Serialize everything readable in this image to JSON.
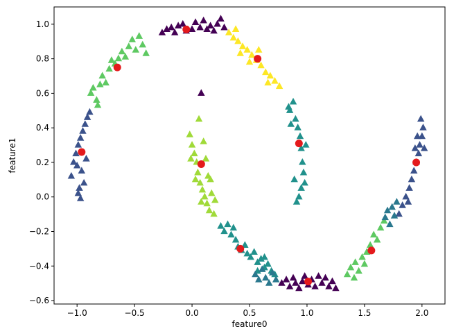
{
  "chart_data": {
    "type": "scatter",
    "title": "",
    "xlabel": "feature0",
    "ylabel": "feature1",
    "xlim": [
      -1.2,
      2.2
    ],
    "ylim": [
      -0.62,
      1.1
    ],
    "xticks": [
      -1.0,
      -0.5,
      0.0,
      0.5,
      1.0,
      1.5,
      2.0
    ],
    "xtick_labels": [
      "−1.0",
      "−0.5",
      "0.0",
      "0.5",
      "1.0",
      "1.5",
      "2.0"
    ],
    "yticks": [
      -0.6,
      -0.4,
      -0.2,
      0.0,
      0.2,
      0.4,
      0.6,
      0.8,
      1.0
    ],
    "ytick_labels": [
      "−0.6",
      "−0.4",
      "−0.2",
      "0.0",
      "0.2",
      "0.4",
      "0.6",
      "0.8",
      "1.0"
    ],
    "grid": false,
    "colors": {
      "cluster_0": "#440154",
      "cluster_1": "#21918c",
      "cluster_2": "#5ec962",
      "cluster_3": "#fde725",
      "cluster_4": "#a0da39",
      "cluster_5": "#3b528b",
      "cluster_6": "#2a788e",
      "center": "#e41a1c"
    },
    "series": [
      {
        "name": "cluster_0",
        "marker": "triangle",
        "color_key": "cluster_0",
        "points": [
          [
            -0.22,
            0.97
          ],
          [
            -0.18,
            0.98
          ],
          [
            -0.15,
            0.95
          ],
          [
            -0.12,
            0.99
          ],
          [
            -0.08,
            1.0
          ],
          [
            -0.05,
            0.96
          ],
          [
            0.0,
            0.97
          ],
          [
            0.03,
            1.01
          ],
          [
            0.07,
            0.98
          ],
          [
            0.1,
            1.02
          ],
          [
            0.13,
            0.97
          ],
          [
            0.16,
            0.99
          ],
          [
            0.19,
            0.96
          ],
          [
            0.22,
            1.0
          ],
          [
            0.25,
            1.03
          ],
          [
            0.28,
            0.98
          ],
          [
            -0.26,
            0.95
          ],
          [
            0.08,
            0.6
          ],
          [
            0.78,
            -0.5
          ],
          [
            0.82,
            -0.48
          ],
          [
            0.85,
            -0.52
          ],
          [
            0.88,
            -0.47
          ],
          [
            0.9,
            -0.5
          ],
          [
            0.93,
            -0.53
          ],
          [
            0.96,
            -0.49
          ],
          [
            0.98,
            -0.46
          ],
          [
            1.01,
            -0.51
          ],
          [
            1.04,
            -0.48
          ],
          [
            1.07,
            -0.52
          ],
          [
            1.1,
            -0.46
          ],
          [
            1.13,
            -0.5
          ],
          [
            1.16,
            -0.47
          ],
          [
            1.19,
            -0.52
          ],
          [
            1.22,
            -0.49
          ],
          [
            1.25,
            -0.53
          ]
        ]
      },
      {
        "name": "cluster_1",
        "marker": "triangle",
        "color_key": "cluster_1",
        "points": [
          [
            0.25,
            -0.17
          ],
          [
            0.28,
            -0.2
          ],
          [
            0.31,
            -0.16
          ],
          [
            0.34,
            -0.22
          ],
          [
            0.36,
            -0.18
          ],
          [
            0.38,
            -0.25
          ],
          [
            0.4,
            -0.29
          ],
          [
            0.43,
            -0.31
          ],
          [
            0.46,
            -0.28
          ],
          [
            0.48,
            -0.33
          ],
          [
            0.51,
            -0.35
          ],
          [
            0.54,
            -0.32
          ],
          [
            0.57,
            -0.38
          ],
          [
            0.6,
            -0.36
          ],
          [
            0.63,
            -0.41
          ],
          [
            0.66,
            -0.39
          ],
          [
            0.69,
            -0.43
          ],
          [
            0.72,
            -0.45
          ],
          [
            0.57,
            -0.43
          ],
          [
            0.63,
            -0.35
          ],
          [
            0.85,
            0.5
          ],
          [
            0.88,
            0.55
          ],
          [
            0.9,
            0.45
          ],
          [
            0.92,
            0.4
          ],
          [
            0.94,
            0.35
          ],
          [
            0.95,
            0.28
          ],
          [
            0.96,
            0.2
          ],
          [
            0.97,
            0.14
          ],
          [
            0.98,
            0.08
          ],
          [
            0.95,
            0.05
          ],
          [
            0.93,
            0.0
          ],
          [
            0.91,
            -0.03
          ],
          [
            0.89,
            0.1
          ],
          [
            0.99,
            0.3
          ],
          [
            0.86,
            0.42
          ],
          [
            0.84,
            0.52
          ]
        ]
      },
      {
        "name": "cluster_2",
        "marker": "triangle",
        "color_key": "cluster_2",
        "points": [
          [
            -0.88,
            0.6
          ],
          [
            -0.86,
            0.63
          ],
          [
            -0.83,
            0.56
          ],
          [
            -0.8,
            0.65
          ],
          [
            -0.78,
            0.7
          ],
          [
            -0.75,
            0.66
          ],
          [
            -0.72,
            0.74
          ],
          [
            -0.7,
            0.79
          ],
          [
            -0.67,
            0.77
          ],
          [
            -0.64,
            0.8
          ],
          [
            -0.61,
            0.84
          ],
          [
            -0.58,
            0.81
          ],
          [
            -0.55,
            0.87
          ],
          [
            -0.52,
            0.91
          ],
          [
            -0.49,
            0.85
          ],
          [
            -0.46,
            0.93
          ],
          [
            -0.43,
            0.88
          ],
          [
            -0.4,
            0.83
          ],
          [
            -0.82,
            0.53
          ],
          [
            1.35,
            -0.45
          ],
          [
            1.38,
            -0.41
          ],
          [
            1.42,
            -0.38
          ],
          [
            1.45,
            -0.43
          ],
          [
            1.48,
            -0.35
          ],
          [
            1.52,
            -0.32
          ],
          [
            1.55,
            -0.28
          ],
          [
            1.58,
            -0.22
          ],
          [
            1.61,
            -0.25
          ],
          [
            1.64,
            -0.18
          ],
          [
            1.67,
            -0.14
          ],
          [
            1.5,
            -0.39
          ],
          [
            1.41,
            -0.47
          ]
        ]
      },
      {
        "name": "cluster_3",
        "marker": "triangle",
        "color_key": "cluster_3",
        "points": [
          [
            0.32,
            0.95
          ],
          [
            0.36,
            0.92
          ],
          [
            0.4,
            0.9
          ],
          [
            0.44,
            0.87
          ],
          [
            0.48,
            0.85
          ],
          [
            0.52,
            0.82
          ],
          [
            0.56,
            0.79
          ],
          [
            0.6,
            0.76
          ],
          [
            0.64,
            0.72
          ],
          [
            0.68,
            0.7
          ],
          [
            0.72,
            0.67
          ],
          [
            0.76,
            0.64
          ],
          [
            0.42,
            0.83
          ],
          [
            0.5,
            0.78
          ],
          [
            0.66,
            0.66
          ],
          [
            0.38,
            0.97
          ],
          [
            0.58,
            0.85
          ]
        ]
      },
      {
        "name": "cluster_4",
        "marker": "triangle",
        "color_key": "cluster_4",
        "points": [
          [
            -0.02,
            0.36
          ],
          [
            0.0,
            0.3
          ],
          [
            0.02,
            0.25
          ],
          [
            0.04,
            0.2
          ],
          [
            0.05,
            0.14
          ],
          [
            0.07,
            0.08
          ],
          [
            0.09,
            0.04
          ],
          [
            0.11,
            0.0
          ],
          [
            0.13,
            -0.04
          ],
          [
            0.15,
            -0.08
          ],
          [
            0.17,
            0.02
          ],
          [
            0.19,
            -0.1
          ],
          [
            0.06,
            0.45
          ],
          [
            0.1,
            0.32
          ],
          [
            0.12,
            0.22
          ],
          [
            0.14,
            0.12
          ],
          [
            0.03,
            0.1
          ],
          [
            -0.01,
            0.22
          ],
          [
            0.08,
            -0.03
          ],
          [
            0.16,
            0.1
          ],
          [
            0.2,
            -0.02
          ]
        ]
      },
      {
        "name": "cluster_5",
        "marker": "triangle",
        "color_key": "cluster_5",
        "points": [
          [
            -1.05,
            0.12
          ],
          [
            -1.03,
            0.2
          ],
          [
            -1.01,
            0.25
          ],
          [
            -0.99,
            0.3
          ],
          [
            -0.97,
            0.34
          ],
          [
            -0.95,
            0.38
          ],
          [
            -0.93,
            0.42
          ],
          [
            -0.91,
            0.46
          ],
          [
            -0.89,
            0.49
          ],
          [
            -0.98,
            0.05
          ],
          [
            -0.96,
            0.15
          ],
          [
            -1.0,
            0.18
          ],
          [
            -0.94,
            0.08
          ],
          [
            -0.99,
            0.02
          ],
          [
            -0.92,
            0.22
          ],
          [
            -0.97,
            -0.01
          ],
          [
            1.8,
            -0.1
          ],
          [
            1.83,
            -0.05
          ],
          [
            1.86,
            0.0
          ],
          [
            1.89,
            0.05
          ],
          [
            1.91,
            0.1
          ],
          [
            1.93,
            0.15
          ],
          [
            1.95,
            0.2
          ],
          [
            1.97,
            0.25
          ],
          [
            1.98,
            0.3
          ],
          [
            2.0,
            0.35
          ],
          [
            2.01,
            0.4
          ],
          [
            1.99,
            0.45
          ],
          [
            1.96,
            0.35
          ],
          [
            1.94,
            0.28
          ],
          [
            1.88,
            -0.03
          ],
          [
            2.02,
            0.28
          ]
        ]
      },
      {
        "name": "cluster_6",
        "marker": "triangle",
        "color_key": "cluster_6",
        "points": [
          [
            0.55,
            -0.45
          ],
          [
            0.58,
            -0.48
          ],
          [
            0.61,
            -0.42
          ],
          [
            0.64,
            -0.47
          ],
          [
            0.67,
            -0.5
          ],
          [
            0.7,
            -0.44
          ],
          [
            0.73,
            -0.48
          ],
          [
            1.68,
            -0.12
          ],
          [
            1.7,
            -0.08
          ],
          [
            1.72,
            -0.16
          ],
          [
            1.74,
            -0.06
          ],
          [
            1.76,
            -0.11
          ],
          [
            1.78,
            -0.03
          ]
        ]
      }
    ],
    "centers": {
      "name": "cluster_centers",
      "marker": "circle",
      "color_key": "center",
      "points": [
        [
          -0.05,
          0.97
        ],
        [
          0.57,
          0.8
        ],
        [
          -0.65,
          0.75
        ],
        [
          -0.96,
          0.26
        ],
        [
          0.93,
          0.31
        ],
        [
          0.08,
          0.19
        ],
        [
          1.95,
          0.2
        ],
        [
          0.42,
          -0.3
        ],
        [
          1.56,
          -0.31
        ],
        [
          1.01,
          -0.49
        ]
      ]
    }
  }
}
